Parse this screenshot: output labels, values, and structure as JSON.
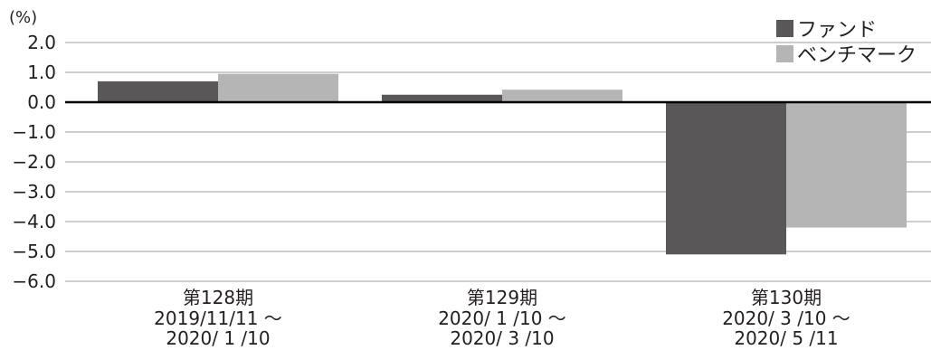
{
  "chart_data": {
    "type": "bar",
    "unit_label": "(%)",
    "ylim": [
      -6.0,
      2.0
    ],
    "yticks": [
      {
        "value": 2.0,
        "label": "2.0"
      },
      {
        "value": 1.0,
        "label": "1.0"
      },
      {
        "value": 0.0,
        "label": "0.0"
      },
      {
        "value": -1.0,
        "label": "−1.0"
      },
      {
        "value": -2.0,
        "label": "−2.0"
      },
      {
        "value": -3.0,
        "label": "−3.0"
      },
      {
        "value": -4.0,
        "label": "−4.0"
      },
      {
        "value": -5.0,
        "label": "−5.0"
      },
      {
        "value": -6.0,
        "label": "−6.0"
      }
    ],
    "categories": [
      {
        "lines": [
          "第128期",
          "2019/11/11 ～",
          "2020/ 1 /10"
        ]
      },
      {
        "lines": [
          "第129期",
          "2020/ 1 /10 ～",
          "2020/ 3 /10"
        ]
      },
      {
        "lines": [
          "第130期",
          "2020/ 3 /10 ～",
          "2020/ 5 /11"
        ]
      }
    ],
    "series": [
      {
        "name": "ファンド",
        "color": "#595757",
        "values": [
          0.7,
          0.25,
          -5.1
        ]
      },
      {
        "name": "ベンチマーク",
        "color": "#b5b5b6",
        "values": [
          0.95,
          0.42,
          -4.2
        ]
      }
    ],
    "grid": true,
    "legend_position": "top-right"
  }
}
